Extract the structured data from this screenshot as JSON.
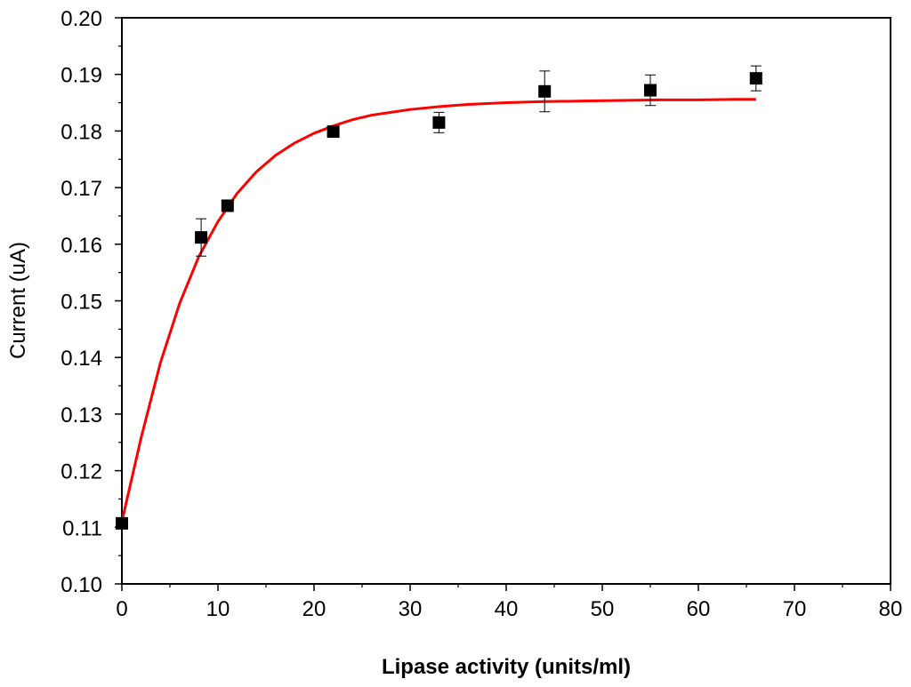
{
  "chart_data": {
    "type": "scatter",
    "title": "",
    "xlabel": "Lipase activity (units/ml)",
    "ylabel": "Current (uA)",
    "xlim": [
      0,
      80
    ],
    "ylim": [
      0.1,
      0.2
    ],
    "x_ticks": [
      "0",
      "10",
      "20",
      "30",
      "40",
      "50",
      "60",
      "70",
      "80"
    ],
    "y_ticks": [
      "0.10",
      "0.11",
      "0.12",
      "0.13",
      "0.14",
      "0.15",
      "0.16",
      "0.17",
      "0.18",
      "0.19",
      "0.20"
    ],
    "grid": false,
    "legend": "none",
    "series": [
      {
        "kind": "points",
        "marker": "square",
        "color": "#000000",
        "x": [
          0,
          8.25,
          11,
          22,
          33,
          44,
          55,
          66
        ],
        "y": [
          0.1107,
          0.1612,
          0.1668,
          0.1799,
          0.1815,
          0.187,
          0.1872,
          0.1893
        ],
        "error": [
          0.0004,
          0.0033,
          0.001,
          0.0003,
          0.0018,
          0.0036,
          0.0027,
          0.0022
        ]
      },
      {
        "kind": "fit-line",
        "color": "#ff0000",
        "x": [
          0,
          2,
          4,
          6,
          8,
          10,
          12,
          14,
          16,
          18,
          20,
          22,
          24,
          26,
          28,
          30,
          33,
          36,
          40,
          44,
          48,
          52,
          56,
          60,
          64,
          66
        ],
        "y": [
          0.111,
          0.1258,
          0.139,
          0.1495,
          0.1578,
          0.164,
          0.169,
          0.1728,
          0.1757,
          0.1779,
          0.1796,
          0.1809,
          0.182,
          0.1828,
          0.1833,
          0.1838,
          0.1843,
          0.1847,
          0.185,
          0.1852,
          0.1853,
          0.1854,
          0.1855,
          0.1855,
          0.1856,
          0.1856
        ]
      }
    ]
  }
}
